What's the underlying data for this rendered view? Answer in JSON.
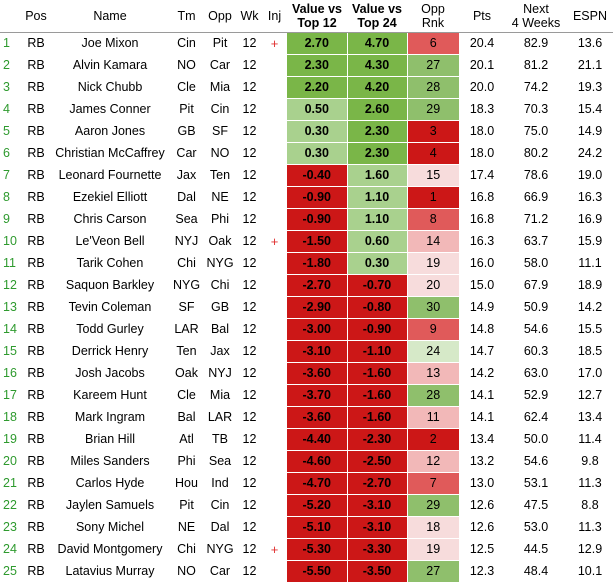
{
  "colors": {
    "pos_strong": "#7ab648",
    "pos_light": "#a9d18e",
    "neg_strong": "#cc1717",
    "neg_mid": "#e05a5a",
    "neg_light": "#f2b8b8",
    "neg_pale": "#f7dcdc",
    "pale_green": "#d6e9c8",
    "mid_green": "#8fbf6c",
    "row_number": "#2e9a2e",
    "injury": "#e03030"
  },
  "headers": {
    "num": "",
    "pos": "Pos",
    "name": "Name",
    "tm": "Tm",
    "opp": "Opp",
    "wk": "Wk",
    "inj": "Inj",
    "v12_line1": "Value vs",
    "v12_line2": "Top 12",
    "v24_line1": "Value vs",
    "v24_line2": "Top 24",
    "opprnk_line1": "Opp",
    "opprnk_line2": "Rnk",
    "pts": "Pts",
    "next4_line1": "Next",
    "next4_line2": "4 Weeks",
    "espn": "ESPN"
  },
  "rows": [
    {
      "num": "1",
      "pos": "RB",
      "name": "Joe Mixon",
      "tm": "Cin",
      "opp": "Pit",
      "wk": "12",
      "inj": "+",
      "v12": "2.70",
      "v24": "4.70",
      "rnk": "6",
      "pts": "20.4",
      "next4": "82.9",
      "espn": "13.6"
    },
    {
      "num": "2",
      "pos": "RB",
      "name": "Alvin Kamara",
      "tm": "NO",
      "opp": "Car",
      "wk": "12",
      "inj": "",
      "v12": "2.30",
      "v24": "4.30",
      "rnk": "27",
      "pts": "20.1",
      "next4": "81.2",
      "espn": "21.1"
    },
    {
      "num": "3",
      "pos": "RB",
      "name": "Nick Chubb",
      "tm": "Cle",
      "opp": "Mia",
      "wk": "12",
      "inj": "",
      "v12": "2.20",
      "v24": "4.20",
      "rnk": "28",
      "pts": "20.0",
      "next4": "74.2",
      "espn": "19.3"
    },
    {
      "num": "4",
      "pos": "RB",
      "name": "James Conner",
      "tm": "Pit",
      "opp": "Cin",
      "wk": "12",
      "inj": "",
      "v12": "0.50",
      "v24": "2.60",
      "rnk": "29",
      "pts": "18.3",
      "next4": "70.3",
      "espn": "15.4"
    },
    {
      "num": "5",
      "pos": "RB",
      "name": "Aaron Jones",
      "tm": "GB",
      "opp": "SF",
      "wk": "12",
      "inj": "",
      "v12": "0.30",
      "v24": "2.30",
      "rnk": "3",
      "pts": "18.0",
      "next4": "75.0",
      "espn": "14.9"
    },
    {
      "num": "6",
      "pos": "RB",
      "name": "Christian McCaffrey",
      "tm": "Car",
      "opp": "NO",
      "wk": "12",
      "inj": "",
      "v12": "0.30",
      "v24": "2.30",
      "rnk": "4",
      "pts": "18.0",
      "next4": "80.2",
      "espn": "24.2"
    },
    {
      "num": "7",
      "pos": "RB",
      "name": "Leonard Fournette",
      "tm": "Jax",
      "opp": "Ten",
      "wk": "12",
      "inj": "",
      "v12": "-0.40",
      "v24": "1.60",
      "rnk": "15",
      "pts": "17.4",
      "next4": "78.6",
      "espn": "19.0"
    },
    {
      "num": "8",
      "pos": "RB",
      "name": "Ezekiel Elliott",
      "tm": "Dal",
      "opp": "NE",
      "wk": "12",
      "inj": "",
      "v12": "-0.90",
      "v24": "1.10",
      "rnk": "1",
      "pts": "16.8",
      "next4": "66.9",
      "espn": "16.3"
    },
    {
      "num": "9",
      "pos": "RB",
      "name": "Chris Carson",
      "tm": "Sea",
      "opp": "Phi",
      "wk": "12",
      "inj": "",
      "v12": "-0.90",
      "v24": "1.10",
      "rnk": "8",
      "pts": "16.8",
      "next4": "71.2",
      "espn": "16.9"
    },
    {
      "num": "10",
      "pos": "RB",
      "name": "Le'Veon Bell",
      "tm": "NYJ",
      "opp": "Oak",
      "wk": "12",
      "inj": "+",
      "v12": "-1.50",
      "v24": "0.60",
      "rnk": "14",
      "pts": "16.3",
      "next4": "63.7",
      "espn": "15.9"
    },
    {
      "num": "11",
      "pos": "RB",
      "name": "Tarik Cohen",
      "tm": "Chi",
      "opp": "NYG",
      "wk": "12",
      "inj": "",
      "v12": "-1.80",
      "v24": "0.30",
      "rnk": "19",
      "pts": "16.0",
      "next4": "58.0",
      "espn": "11.1"
    },
    {
      "num": "12",
      "pos": "RB",
      "name": "Saquon Barkley",
      "tm": "NYG",
      "opp": "Chi",
      "wk": "12",
      "inj": "",
      "v12": "-2.70",
      "v24": "-0.70",
      "rnk": "20",
      "pts": "15.0",
      "next4": "67.9",
      "espn": "18.9"
    },
    {
      "num": "13",
      "pos": "RB",
      "name": "Tevin Coleman",
      "tm": "SF",
      "opp": "GB",
      "wk": "12",
      "inj": "",
      "v12": "-2.90",
      "v24": "-0.80",
      "rnk": "30",
      "pts": "14.9",
      "next4": "50.9",
      "espn": "14.2"
    },
    {
      "num": "14",
      "pos": "RB",
      "name": "Todd Gurley",
      "tm": "LAR",
      "opp": "Bal",
      "wk": "12",
      "inj": "",
      "v12": "-3.00",
      "v24": "-0.90",
      "rnk": "9",
      "pts": "14.8",
      "next4": "54.6",
      "espn": "15.5"
    },
    {
      "num": "15",
      "pos": "RB",
      "name": "Derrick Henry",
      "tm": "Ten",
      "opp": "Jax",
      "wk": "12",
      "inj": "",
      "v12": "-3.10",
      "v24": "-1.10",
      "rnk": "24",
      "pts": "14.7",
      "next4": "60.3",
      "espn": "18.5"
    },
    {
      "num": "16",
      "pos": "RB",
      "name": "Josh Jacobs",
      "tm": "Oak",
      "opp": "NYJ",
      "wk": "12",
      "inj": "",
      "v12": "-3.60",
      "v24": "-1.60",
      "rnk": "13",
      "pts": "14.2",
      "next4": "63.0",
      "espn": "17.0"
    },
    {
      "num": "17",
      "pos": "RB",
      "name": "Kareem Hunt",
      "tm": "Cle",
      "opp": "Mia",
      "wk": "12",
      "inj": "",
      "v12": "-3.70",
      "v24": "-1.60",
      "rnk": "28",
      "pts": "14.1",
      "next4": "52.9",
      "espn": "12.7"
    },
    {
      "num": "18",
      "pos": "RB",
      "name": "Mark Ingram",
      "tm": "Bal",
      "opp": "LAR",
      "wk": "12",
      "inj": "",
      "v12": "-3.60",
      "v24": "-1.60",
      "rnk": "11",
      "pts": "14.1",
      "next4": "62.4",
      "espn": "13.4"
    },
    {
      "num": "19",
      "pos": "RB",
      "name": "Brian Hill",
      "tm": "Atl",
      "opp": "TB",
      "wk": "12",
      "inj": "",
      "v12": "-4.40",
      "v24": "-2.30",
      "rnk": "2",
      "pts": "13.4",
      "next4": "50.0",
      "espn": "11.4"
    },
    {
      "num": "20",
      "pos": "RB",
      "name": "Miles Sanders",
      "tm": "Phi",
      "opp": "Sea",
      "wk": "12",
      "inj": "",
      "v12": "-4.60",
      "v24": "-2.50",
      "rnk": "12",
      "pts": "13.2",
      "next4": "54.6",
      "espn": "9.8"
    },
    {
      "num": "21",
      "pos": "RB",
      "name": "Carlos Hyde",
      "tm": "Hou",
      "opp": "Ind",
      "wk": "12",
      "inj": "",
      "v12": "-4.70",
      "v24": "-2.70",
      "rnk": "7",
      "pts": "13.0",
      "next4": "53.1",
      "espn": "11.3"
    },
    {
      "num": "22",
      "pos": "RB",
      "name": "Jaylen Samuels",
      "tm": "Pit",
      "opp": "Cin",
      "wk": "12",
      "inj": "",
      "v12": "-5.20",
      "v24": "-3.10",
      "rnk": "29",
      "pts": "12.6",
      "next4": "47.5",
      "espn": "8.8"
    },
    {
      "num": "23",
      "pos": "RB",
      "name": "Sony Michel",
      "tm": "NE",
      "opp": "Dal",
      "wk": "12",
      "inj": "",
      "v12": "-5.10",
      "v24": "-3.10",
      "rnk": "18",
      "pts": "12.6",
      "next4": "53.0",
      "espn": "11.3"
    },
    {
      "num": "24",
      "pos": "RB",
      "name": "David Montgomery",
      "tm": "Chi",
      "opp": "NYG",
      "wk": "12",
      "inj": "+",
      "v12": "-5.30",
      "v24": "-3.30",
      "rnk": "19",
      "pts": "12.5",
      "next4": "44.5",
      "espn": "12.9"
    },
    {
      "num": "25",
      "pos": "RB",
      "name": "Latavius Murray",
      "tm": "NO",
      "opp": "Car",
      "wk": "12",
      "inj": "",
      "v12": "-5.50",
      "v24": "-3.50",
      "rnk": "27",
      "pts": "12.3",
      "next4": "48.4",
      "espn": "10.1"
    }
  ]
}
